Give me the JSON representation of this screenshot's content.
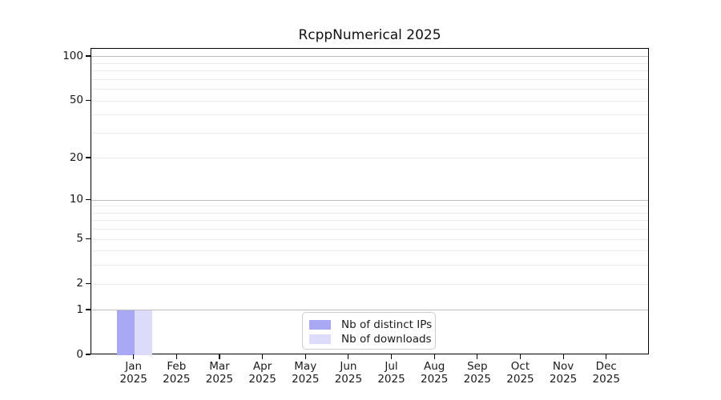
{
  "figure": {
    "background": "#ffffff"
  },
  "chart_data": {
    "type": "bar",
    "title": "RcppNumerical 2025",
    "xlabel": "",
    "ylabel": "",
    "categories": [
      "Jan 2025",
      "Feb 2025",
      "Mar 2025",
      "Apr 2025",
      "May 2025",
      "Jun 2025",
      "Jul 2025",
      "Aug 2025",
      "Sep 2025",
      "Oct 2025",
      "Nov 2025",
      "Dec 2025"
    ],
    "series": [
      {
        "name": "Nb of distinct IPs",
        "color": "#a8a8f5",
        "values": [
          1,
          0,
          0,
          0,
          0,
          0,
          0,
          0,
          0,
          0,
          0,
          0
        ]
      },
      {
        "name": "Nb of downloads",
        "color": "#dcdcfa",
        "values": [
          1,
          0,
          0,
          0,
          0,
          0,
          0,
          0,
          0,
          0,
          0,
          0
        ]
      }
    ],
    "y_scale": "log10(value+1)",
    "ylim": [
      0,
      113
    ],
    "y_ticks": [
      0,
      1,
      2,
      5,
      10,
      20,
      50,
      100
    ],
    "y_gridlines_major": [
      1,
      10,
      100
    ],
    "y_gridlines_minor": [
      2,
      3,
      4,
      5,
      6,
      7,
      8,
      9,
      20,
      30,
      40,
      50,
      60,
      70,
      80,
      90
    ],
    "grid": "horizontal",
    "legend": {
      "position": "lower center",
      "entries": [
        "Nb of distinct IPs",
        "Nb of downloads"
      ]
    },
    "colors": {
      "major_grid": "#bdbdbd",
      "minor_grid": "#ebebeb",
      "axis": "#000000",
      "legend_border": "#cccccc",
      "text": "#1a1a1a"
    }
  }
}
